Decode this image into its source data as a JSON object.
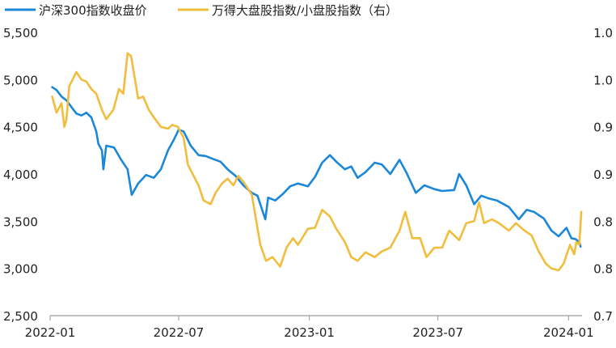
{
  "chart_data": {
    "type": "line",
    "colors": {
      "series1": "#1b87d8",
      "series2": "#f2bd3c",
      "axis": "#9a9a9a",
      "text": "#222222"
    },
    "legend": {
      "position": "top-left",
      "items": [
        "沪深300指数收盘价",
        "万得大盘股指数/小盘股指数（右）"
      ]
    },
    "x_axis": {
      "ticks": [
        "2022-01",
        "2022-07",
        "2023-01",
        "2023-07",
        "2024-01"
      ],
      "tick_dates": [
        "2022-01-01",
        "2022-07-01",
        "2023-01-01",
        "2023-07-01",
        "2024-01-01"
      ],
      "range": [
        "2022-01-01",
        "2024-01-20"
      ]
    },
    "y_left": {
      "ticks": [
        "5,500",
        "5,000",
        "4,500",
        "4,000",
        "3,500",
        "3,000",
        "2,500"
      ],
      "tick_values": [
        5500,
        5000,
        4500,
        4000,
        3500,
        3000,
        2500
      ],
      "range": [
        2500,
        5500
      ]
    },
    "y_right": {
      "ticks": [
        "1.0",
        "1.0",
        "0.9",
        "0.9",
        "0.8",
        "0.8",
        "0.7"
      ],
      "tick_values": [
        1.0,
        0.95,
        0.9,
        0.85,
        0.8,
        0.75,
        0.7
      ],
      "range": [
        0.7,
        1.0
      ]
    },
    "series": [
      {
        "name": "沪深300指数收盘价",
        "axis": "left",
        "points": [
          [
            "2022-01-04",
            4920
          ],
          [
            "2022-01-10",
            4890
          ],
          [
            "2022-01-17",
            4820
          ],
          [
            "2022-01-24",
            4780
          ],
          [
            "2022-01-28",
            4740
          ],
          [
            "2022-02-07",
            4640
          ],
          [
            "2022-02-14",
            4620
          ],
          [
            "2022-02-21",
            4650
          ],
          [
            "2022-02-28",
            4600
          ],
          [
            "2022-03-07",
            4450
          ],
          [
            "2022-03-10",
            4320
          ],
          [
            "2022-03-15",
            4250
          ],
          [
            "2022-03-17",
            4050
          ],
          [
            "2022-03-21",
            4300
          ],
          [
            "2022-04-01",
            4280
          ],
          [
            "2022-04-11",
            4150
          ],
          [
            "2022-04-20",
            4050
          ],
          [
            "2022-04-26",
            3780
          ],
          [
            "2022-05-05",
            3900
          ],
          [
            "2022-05-16",
            3990
          ],
          [
            "2022-05-27",
            3960
          ],
          [
            "2022-06-06",
            4050
          ],
          [
            "2022-06-16",
            4250
          ],
          [
            "2022-06-24",
            4360
          ],
          [
            "2022-07-01",
            4470
          ],
          [
            "2022-07-08",
            4450
          ],
          [
            "2022-07-18",
            4300
          ],
          [
            "2022-07-29",
            4200
          ],
          [
            "2022-08-08",
            4190
          ],
          [
            "2022-08-18",
            4160
          ],
          [
            "2022-08-29",
            4130
          ],
          [
            "2022-09-08",
            4050
          ],
          [
            "2022-09-19",
            3980
          ],
          [
            "2022-09-30",
            3880
          ],
          [
            "2022-10-12",
            3800
          ],
          [
            "2022-10-20",
            3770
          ],
          [
            "2022-10-31",
            3520
          ],
          [
            "2022-11-04",
            3750
          ],
          [
            "2022-11-14",
            3720
          ],
          [
            "2022-11-25",
            3790
          ],
          [
            "2022-12-05",
            3870
          ],
          [
            "2022-12-16",
            3900
          ],
          [
            "2022-12-30",
            3870
          ],
          [
            "2023-01-09",
            3970
          ],
          [
            "2023-01-19",
            4120
          ],
          [
            "2023-01-30",
            4200
          ],
          [
            "2023-02-08",
            4130
          ],
          [
            "2023-02-20",
            4050
          ],
          [
            "2023-03-01",
            4080
          ],
          [
            "2023-03-10",
            3960
          ],
          [
            "2023-03-21",
            4020
          ],
          [
            "2023-04-03",
            4120
          ],
          [
            "2023-04-13",
            4100
          ],
          [
            "2023-04-25",
            4000
          ],
          [
            "2023-05-08",
            4150
          ],
          [
            "2023-05-18",
            4010
          ],
          [
            "2023-05-31",
            3800
          ],
          [
            "2023-06-12",
            3880
          ],
          [
            "2023-06-26",
            3840
          ],
          [
            "2023-07-07",
            3820
          ],
          [
            "2023-07-24",
            3830
          ],
          [
            "2023-07-31",
            4000
          ],
          [
            "2023-08-10",
            3880
          ],
          [
            "2023-08-21",
            3680
          ],
          [
            "2023-08-31",
            3770
          ],
          [
            "2023-09-11",
            3740
          ],
          [
            "2023-09-22",
            3720
          ],
          [
            "2023-10-09",
            3650
          ],
          [
            "2023-10-23",
            3520
          ],
          [
            "2023-11-03",
            3620
          ],
          [
            "2023-11-13",
            3600
          ],
          [
            "2023-11-27",
            3530
          ],
          [
            "2023-12-08",
            3400
          ],
          [
            "2023-12-18",
            3340
          ],
          [
            "2023-12-29",
            3430
          ],
          [
            "2024-01-05",
            3320
          ],
          [
            "2024-01-11",
            3310
          ],
          [
            "2024-01-16",
            3280
          ],
          [
            "2024-01-18",
            3230
          ]
        ]
      },
      {
        "name": "万得大盘股指数/小盘股指数（右）",
        "axis": "right",
        "points": [
          [
            "2022-01-04",
            0.932
          ],
          [
            "2022-01-10",
            0.915
          ],
          [
            "2022-01-17",
            0.925
          ],
          [
            "2022-01-21",
            0.9
          ],
          [
            "2022-01-24",
            0.908
          ],
          [
            "2022-01-28",
            0.943
          ],
          [
            "2022-02-07",
            0.958
          ],
          [
            "2022-02-14",
            0.95
          ],
          [
            "2022-02-21",
            0.948
          ],
          [
            "2022-02-28",
            0.94
          ],
          [
            "2022-03-07",
            0.935
          ],
          [
            "2022-03-15",
            0.918
          ],
          [
            "2022-03-21",
            0.908
          ],
          [
            "2022-03-31",
            0.918
          ],
          [
            "2022-04-08",
            0.94
          ],
          [
            "2022-04-14",
            0.935
          ],
          [
            "2022-04-20",
            0.978
          ],
          [
            "2022-04-25",
            0.975
          ],
          [
            "2022-05-05",
            0.93
          ],
          [
            "2022-05-12",
            0.932
          ],
          [
            "2022-05-20",
            0.918
          ],
          [
            "2022-05-27",
            0.91
          ],
          [
            "2022-06-06",
            0.9
          ],
          [
            "2022-06-16",
            0.898
          ],
          [
            "2022-06-22",
            0.902
          ],
          [
            "2022-06-30",
            0.9
          ],
          [
            "2022-07-08",
            0.888
          ],
          [
            "2022-07-14",
            0.86
          ],
          [
            "2022-07-22",
            0.848
          ],
          [
            "2022-07-29",
            0.838
          ],
          [
            "2022-08-05",
            0.822
          ],
          [
            "2022-08-15",
            0.818
          ],
          [
            "2022-08-22",
            0.83
          ],
          [
            "2022-08-31",
            0.84
          ],
          [
            "2022-09-08",
            0.845
          ],
          [
            "2022-09-16",
            0.838
          ],
          [
            "2022-09-23",
            0.848
          ],
          [
            "2022-09-30",
            0.842
          ],
          [
            "2022-10-12",
            0.828
          ],
          [
            "2022-10-24",
            0.775
          ],
          [
            "2022-11-01",
            0.758
          ],
          [
            "2022-11-10",
            0.762
          ],
          [
            "2022-11-21",
            0.752
          ],
          [
            "2022-11-30",
            0.772
          ],
          [
            "2022-12-09",
            0.782
          ],
          [
            "2022-12-16",
            0.775
          ],
          [
            "2022-12-30",
            0.792
          ],
          [
            "2023-01-09",
            0.793
          ],
          [
            "2023-01-19",
            0.812
          ],
          [
            "2023-01-30",
            0.805
          ],
          [
            "2023-02-08",
            0.792
          ],
          [
            "2023-02-20",
            0.778
          ],
          [
            "2023-03-01",
            0.762
          ],
          [
            "2023-03-10",
            0.758
          ],
          [
            "2023-03-21",
            0.767
          ],
          [
            "2023-04-03",
            0.762
          ],
          [
            "2023-04-13",
            0.768
          ],
          [
            "2023-04-25",
            0.772
          ],
          [
            "2023-05-08",
            0.79
          ],
          [
            "2023-05-16",
            0.81
          ],
          [
            "2023-05-26",
            0.782
          ],
          [
            "2023-06-06",
            0.782
          ],
          [
            "2023-06-15",
            0.762
          ],
          [
            "2023-06-26",
            0.772
          ],
          [
            "2023-07-07",
            0.772
          ],
          [
            "2023-07-17",
            0.79
          ],
          [
            "2023-07-31",
            0.78
          ],
          [
            "2023-08-10",
            0.798
          ],
          [
            "2023-08-21",
            0.8
          ],
          [
            "2023-08-28",
            0.82
          ],
          [
            "2023-09-04",
            0.798
          ],
          [
            "2023-09-15",
            0.802
          ],
          [
            "2023-09-25",
            0.798
          ],
          [
            "2023-10-09",
            0.79
          ],
          [
            "2023-10-19",
            0.798
          ],
          [
            "2023-10-31",
            0.79
          ],
          [
            "2023-11-10",
            0.785
          ],
          [
            "2023-11-20",
            0.768
          ],
          [
            "2023-11-30",
            0.755
          ],
          [
            "2023-12-08",
            0.75
          ],
          [
            "2023-12-18",
            0.748
          ],
          [
            "2023-12-25",
            0.755
          ],
          [
            "2024-01-03",
            0.775
          ],
          [
            "2024-01-09",
            0.765
          ],
          [
            "2024-01-12",
            0.778
          ],
          [
            "2024-01-16",
            0.775
          ],
          [
            "2024-01-19",
            0.81
          ]
        ]
      }
    ]
  }
}
